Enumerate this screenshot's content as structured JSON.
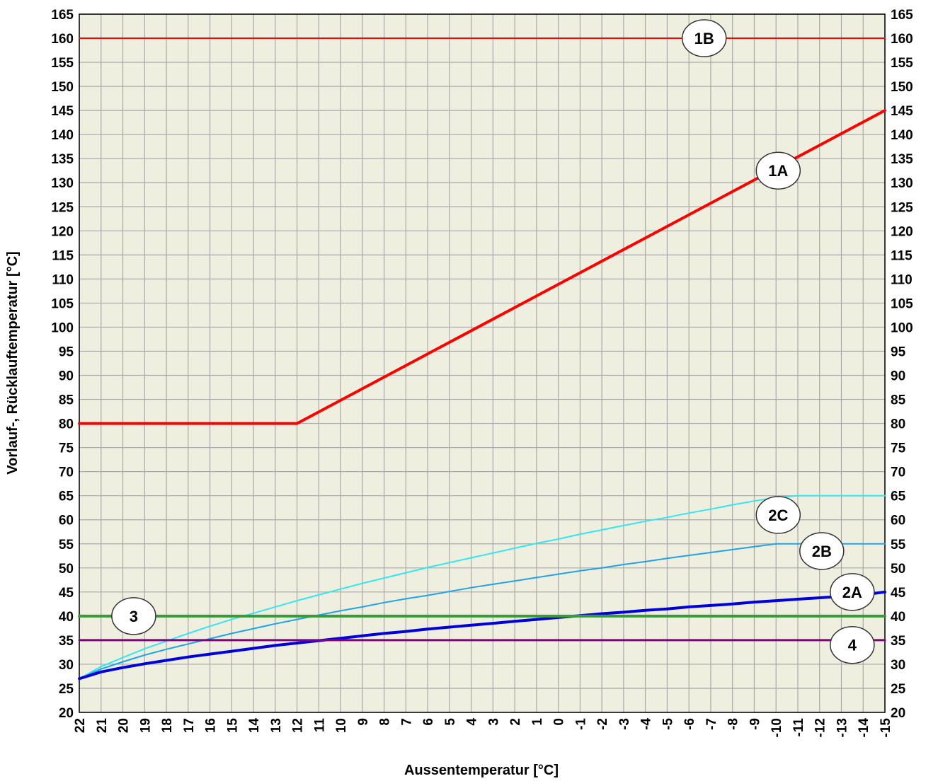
{
  "chart_data": {
    "type": "line",
    "xlabel": "Aussentemperatur [°C]",
    "ylabel": "Vorlauf-, Rücklauftemperatur [°C]",
    "x_ticks": [
      22,
      21,
      20,
      19,
      18,
      17,
      16,
      15,
      14,
      13,
      12,
      11,
      10,
      9,
      8,
      7,
      6,
      5,
      4,
      3,
      2,
      1,
      0,
      -1,
      -2,
      -3,
      -4,
      -5,
      -6,
      -7,
      -8,
      -9,
      -10,
      -11,
      -12,
      -13,
      -14,
      -15
    ],
    "xlim": [
      22,
      -15
    ],
    "ylim": [
      20,
      165
    ],
    "y_step": 5,
    "y_ticks_both_sides": true,
    "grid": true,
    "plot_background": "#efefe0",
    "grid_color": "#a8a8a8",
    "series": [
      {
        "label": "1B",
        "color": "#ff0000",
        "width": 2,
        "x": [
          22,
          -15
        ],
        "y": [
          160,
          160
        ]
      },
      {
        "label": "1A",
        "color": "#ff0000",
        "width": 4,
        "x": [
          22,
          12,
          -15
        ],
        "y": [
          80,
          80,
          145
        ]
      },
      {
        "label": "2C",
        "color": "#33e6f0",
        "width": 2,
        "x": [
          22,
          21,
          20,
          19,
          18,
          17,
          16,
          15,
          14,
          13,
          12,
          11,
          10,
          9,
          8,
          7,
          6,
          5,
          4,
          3,
          2,
          1,
          0,
          -1,
          -2,
          -3,
          -4,
          -5,
          -6,
          -7,
          -8,
          -9,
          -10,
          -11,
          -12,
          -13,
          -14,
          -15
        ],
        "y": [
          27,
          29.5,
          31.4,
          33.2,
          34.8,
          36.4,
          37.9,
          39.3,
          40.6,
          41.9,
          43.2,
          44.4,
          45.6,
          46.8,
          47.9,
          49,
          50.1,
          51.1,
          52.1,
          53.1,
          54.1,
          55.1,
          56,
          57,
          57.9,
          58.8,
          59.7,
          60.5,
          61.4,
          62.2,
          63.1,
          63.9,
          64.6,
          65,
          65,
          65,
          65,
          65
        ]
      },
      {
        "label": "2B",
        "color": "#1fa3e8",
        "width": 2,
        "x": [
          22,
          21,
          20,
          19,
          18,
          17,
          16,
          15,
          14,
          13,
          12,
          11,
          10,
          9,
          8,
          7,
          6,
          5,
          4,
          3,
          2,
          1,
          0,
          -1,
          -2,
          -3,
          -4,
          -5,
          -6,
          -7,
          -8,
          -9,
          -10,
          -11,
          -12,
          -13,
          -14,
          -15
        ],
        "y": [
          27,
          29,
          30.5,
          31.9,
          33.1,
          34.2,
          35.3,
          36.4,
          37.4,
          38.4,
          39.3,
          40.2,
          41.1,
          41.9,
          42.8,
          43.6,
          44.3,
          45.1,
          45.9,
          46.6,
          47.3,
          48,
          48.7,
          49.4,
          50,
          50.7,
          51.3,
          52,
          52.6,
          53.2,
          53.8,
          54.4,
          55,
          55,
          55,
          55,
          55,
          55
        ]
      },
      {
        "label": "2A",
        "color": "#0000dd",
        "width": 4,
        "x": [
          22,
          21,
          20,
          19,
          18,
          17,
          16,
          15,
          14,
          13,
          12,
          11,
          10,
          9,
          8,
          7,
          6,
          5,
          4,
          3,
          2,
          1,
          0,
          -1,
          -2,
          -3,
          -4,
          -5,
          -6,
          -7,
          -8,
          -9,
          -10,
          -11,
          -12,
          -13,
          -14,
          -15
        ],
        "y": [
          27,
          28.4,
          29.3,
          30.1,
          30.8,
          31.5,
          32.1,
          32.7,
          33.3,
          33.9,
          34.4,
          34.9,
          35.4,
          35.9,
          36.4,
          36.8,
          37.3,
          37.7,
          38.1,
          38.5,
          38.9,
          39.3,
          39.7,
          40.1,
          40.5,
          40.8,
          41.2,
          41.5,
          41.9,
          42.2,
          42.5,
          42.9,
          43.2,
          43.5,
          43.8,
          44.1,
          44.4,
          45
        ]
      },
      {
        "label": "3",
        "color": "#3a9a3a",
        "width": 4,
        "x": [
          22,
          -15
        ],
        "y": [
          40,
          40
        ]
      },
      {
        "label": "4",
        "color": "#800080",
        "width": 3,
        "x": [
          22,
          -15
        ],
        "y": [
          35,
          35
        ]
      }
    ],
    "annotations": [
      {
        "text": "1B",
        "x": -6.7,
        "y": 160
      },
      {
        "text": "1A",
        "x": -10.1,
        "y": 132.5
      },
      {
        "text": "2C",
        "x": -10.1,
        "y": 61
      },
      {
        "text": "2B",
        "x": -12.1,
        "y": 53.5
      },
      {
        "text": "2A",
        "x": -13.5,
        "y": 45
      },
      {
        "text": "3",
        "x": 19.5,
        "y": 40
      },
      {
        "text": "4",
        "x": -13.5,
        "y": 34
      }
    ]
  }
}
